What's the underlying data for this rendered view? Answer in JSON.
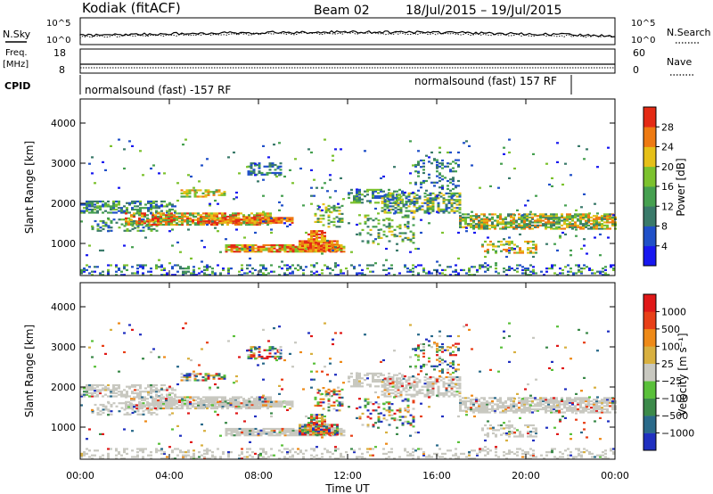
{
  "header": {
    "station": "Kodiak (fitACF)",
    "beam": "Beam 02",
    "date_range": "18/Jul/2015 – 19/Jul/2015"
  },
  "top_panels": {
    "nsky_label": "N.Sky",
    "nsearch_label": "N.Search",
    "noise_ticks": [
      "10^5",
      "10^0"
    ],
    "freq_label": "Freq.",
    "freq_unit": "[MHz]",
    "freq_ticks": [
      "18",
      "8"
    ],
    "nave_label": "Nave",
    "nave_ticks": [
      "60",
      "0"
    ],
    "cpid_label": "CPID",
    "cpid_segments": [
      "normalsound (fast) -157 RF",
      "normalsound (fast) 157 RF"
    ]
  },
  "chart_data": [
    {
      "type": "heatmap",
      "name": "power",
      "ylabel": "Slant Range [km]",
      "ylim": [
        200,
        4600
      ],
      "yticks": [
        1000,
        2000,
        3000,
        4000
      ],
      "xlim_hours": [
        0,
        24
      ],
      "colorbar_label": "Power [dB]",
      "colorbar_ticks": [
        "4",
        "8",
        "12",
        "16",
        "20",
        "24",
        "28"
      ],
      "colorbar_colors": [
        "#1818f0",
        "#2050c8",
        "#3a7a6a",
        "#46a050",
        "#7cc22e",
        "#e6c018",
        "#ee7a12",
        "#e42a14"
      ]
    },
    {
      "type": "heatmap",
      "name": "velocity",
      "ylabel": "Slant Range [km]",
      "ylim": [
        200,
        4600
      ],
      "yticks": [
        1000,
        2000,
        3000,
        4000
      ],
      "xlim_hours": [
        0,
        24
      ],
      "colorbar_label": "Velocity [m s⁻¹]",
      "colorbar_ticks": [
        "1000",
        "500",
        "100",
        "25",
        "−25",
        "−100",
        "−500",
        "−1000"
      ],
      "colorbar_colors": [
        "#2030c0",
        "#2a6a8a",
        "#3c8a4a",
        "#5ac03a",
        "#c8c8c0",
        "#d8b040",
        "#ee8a18",
        "#e84018",
        "#e01818"
      ]
    }
  ],
  "xaxis": {
    "label": "Time UT",
    "ticks": [
      "00:00",
      "04:00",
      "08:00",
      "12:00",
      "16:00",
      "20:00",
      "00:00"
    ]
  },
  "colors": {
    "ground_scatter": "#c8c8c0",
    "low_noise_line": "#000000"
  }
}
